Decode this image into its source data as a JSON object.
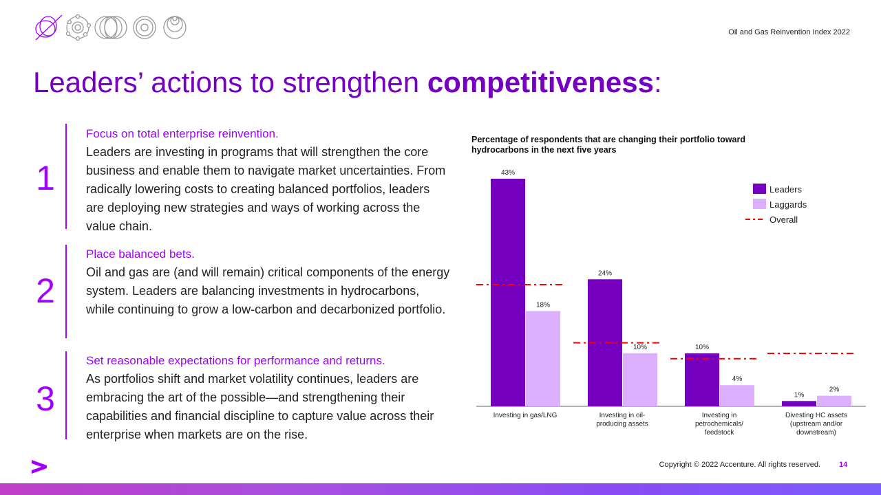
{
  "header": {
    "report_name": "Oil and Gas Reinvention Index 2022"
  },
  "title": {
    "regular": "Leaders’ actions to strengthen ",
    "bold": "competitiveness",
    "suffix": ":"
  },
  "items": [
    {
      "number": "1",
      "heading": "Focus on total enterprise reinvention.",
      "body": "Leaders are investing in programs that will strengthen the core business and enable them to navigate market uncertainties. From radically lowering costs to creating balanced portfolios, leaders are deploying new strategies and ways of working across the value chain."
    },
    {
      "number": "2",
      "heading": "Place balanced bets.",
      "body": "Oil and gas are (and will remain) critical components of the energy system. Leaders are balancing investments in hydrocarbons, while continuing to grow a low-carbon and decarbonized portfolio."
    },
    {
      "number": "3",
      "heading": "Set reasonable expectations for performance and returns.",
      "body": "As portfolios shift and market volatility continues, leaders are embracing the art of the possible—and strengthening their capabilities and financial discipline to capture value across their enterprise when markets are on the rise."
    }
  ],
  "chart_data": {
    "type": "bar",
    "title": "Percentage of respondents that are changing their portfolio toward hydrocarbons in the next five years",
    "categories": [
      [
        "Investing in gas/LNG"
      ],
      [
        "Investing in oil-",
        "producing assets"
      ],
      [
        "Investing in",
        "petrochemicals/",
        "feedstock"
      ],
      [
        "Divesting HC assets",
        "(upstream and/or",
        "downstream)"
      ]
    ],
    "series": [
      {
        "name": "Leaders",
        "values": [
          43,
          24,
          10,
          1
        ],
        "labels": [
          "43%",
          "24%",
          "10%",
          "1%"
        ],
        "color": "#7500c0"
      },
      {
        "name": "Laggards",
        "values": [
          18,
          10,
          4,
          2
        ],
        "labels": [
          "18%",
          "10%",
          "4%",
          "2%"
        ],
        "color": "#dcafff"
      }
    ],
    "overall": {
      "name": "Overall",
      "values": [
        23,
        12,
        9,
        10
      ],
      "color": "#ff0000"
    },
    "ylim": [
      0,
      43
    ],
    "legend": "top-right",
    "grid": false
  },
  "footer": {
    "copyright": "Copyright © 2022 Accenture. All rights reserved.",
    "page": "14"
  },
  "brand": {
    "logo": ">"
  }
}
